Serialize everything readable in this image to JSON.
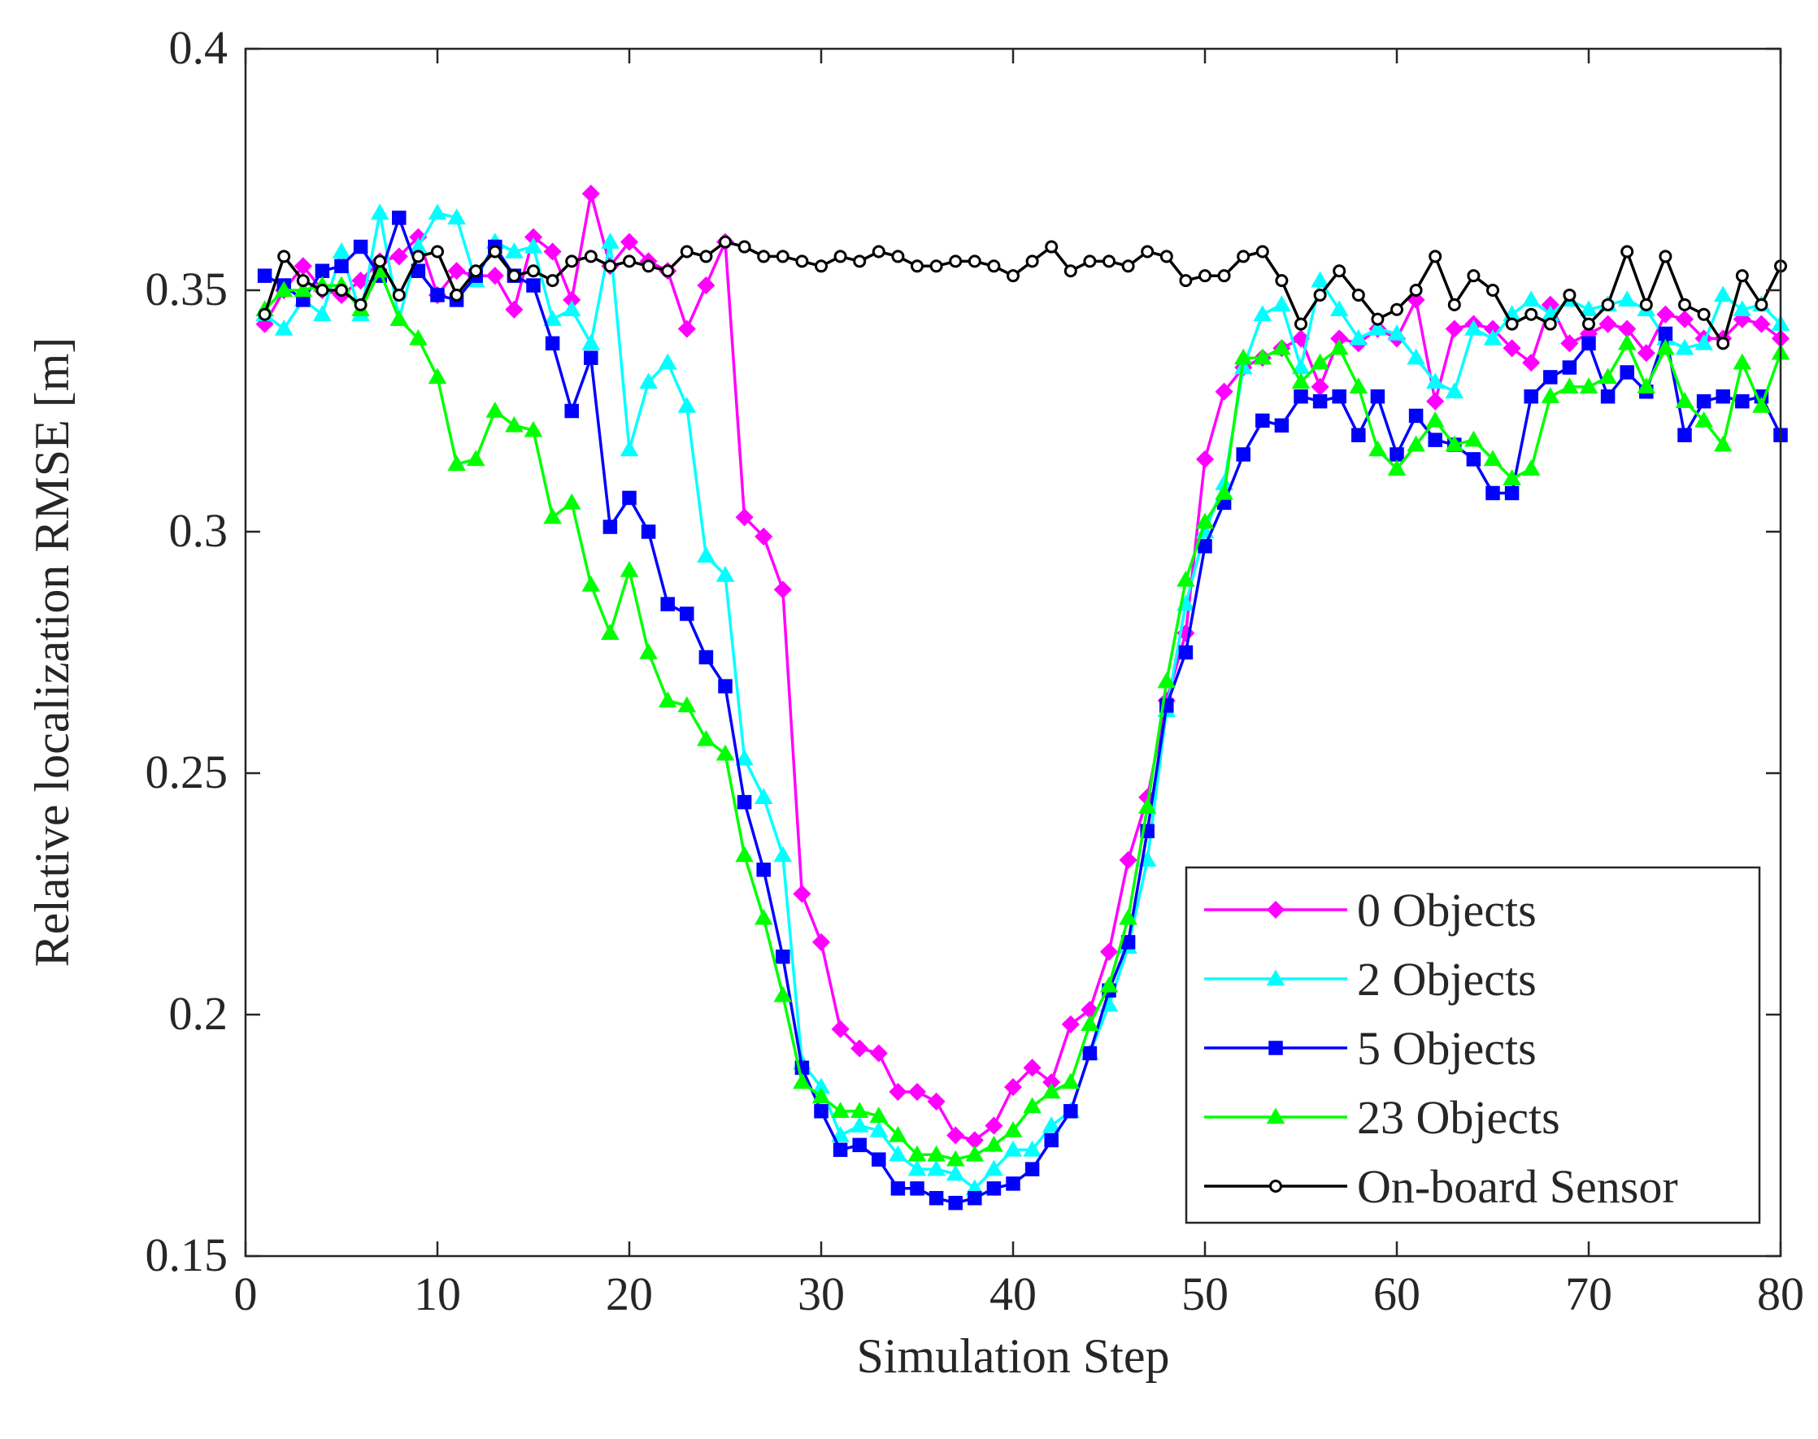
{
  "chart_data": {
    "type": "line",
    "title": "",
    "xlabel": "Simulation Step",
    "ylabel": "Relative localization RMSE [m]",
    "xlim": [
      0,
      80
    ],
    "ylim": [
      0.15,
      0.4
    ],
    "xticks": [
      0,
      10,
      20,
      30,
      40,
      50,
      60,
      70,
      80
    ],
    "xtick_labels": [
      "0",
      "10",
      "20",
      "30",
      "40",
      "50",
      "60",
      "70",
      "80"
    ],
    "yticks": [
      0.15,
      0.2,
      0.25,
      0.3,
      0.35,
      0.4
    ],
    "ytick_labels": [
      "0.15",
      "0.2",
      "0.25",
      "0.3",
      "0.35",
      "0.4"
    ],
    "grid": false,
    "legend_position": "bottom-right",
    "x": [
      1,
      2,
      3,
      4,
      5,
      6,
      7,
      8,
      9,
      10,
      11,
      12,
      13,
      14,
      15,
      16,
      17,
      18,
      19,
      20,
      21,
      22,
      23,
      24,
      25,
      26,
      27,
      28,
      29,
      30,
      31,
      32,
      33,
      34,
      35,
      36,
      37,
      38,
      39,
      40,
      41,
      42,
      43,
      44,
      45,
      46,
      47,
      48,
      49,
      50,
      51,
      52,
      53,
      54,
      55,
      56,
      57,
      58,
      59,
      60,
      61,
      62,
      63,
      64,
      65,
      66,
      67,
      68,
      69,
      70,
      71,
      72,
      73,
      74,
      75,
      76,
      77,
      78,
      79,
      80
    ],
    "series": [
      {
        "name": "0 Objects",
        "color": "#ff00ff",
        "marker": "diamond",
        "values": [
          0.343,
          0.35,
          0.355,
          0.35,
          0.349,
          0.352,
          0.356,
          0.357,
          0.361,
          0.349,
          0.354,
          0.353,
          0.353,
          0.346,
          0.361,
          0.358,
          0.348,
          0.37,
          0.355,
          0.36,
          0.356,
          0.354,
          0.342,
          0.351,
          0.36,
          0.303,
          0.299,
          0.288,
          0.225,
          0.215,
          0.197,
          0.193,
          0.192,
          0.184,
          0.184,
          0.182,
          0.175,
          0.174,
          0.177,
          0.185,
          0.189,
          0.186,
          0.198,
          0.201,
          0.213,
          0.232,
          0.245,
          0.265,
          0.279,
          0.315,
          0.329,
          0.334,
          0.336,
          0.338,
          0.34,
          0.33,
          0.34,
          0.339,
          0.342,
          0.34,
          0.348,
          0.327,
          0.342,
          0.343,
          0.342,
          0.338,
          0.335,
          0.347,
          0.339,
          0.341,
          0.343,
          0.342,
          0.337,
          0.345,
          0.344,
          0.34,
          0.34,
          0.344,
          0.343,
          0.34
        ]
      },
      {
        "name": "2 Objects",
        "color": "#00ffff",
        "marker": "triangle",
        "values": [
          0.345,
          0.342,
          0.348,
          0.345,
          0.358,
          0.345,
          0.366,
          0.344,
          0.359,
          0.366,
          0.365,
          0.352,
          0.36,
          0.358,
          0.359,
          0.344,
          0.346,
          0.339,
          0.36,
          0.317,
          0.331,
          0.335,
          0.326,
          0.295,
          0.291,
          0.253,
          0.245,
          0.233,
          0.19,
          0.185,
          0.175,
          0.177,
          0.176,
          0.171,
          0.168,
          0.168,
          0.167,
          0.164,
          0.168,
          0.172,
          0.172,
          0.177,
          0.18,
          0.192,
          0.202,
          0.214,
          0.232,
          0.263,
          0.285,
          0.3,
          0.31,
          0.334,
          0.345,
          0.347,
          0.334,
          0.352,
          0.346,
          0.34,
          0.342,
          0.341,
          0.336,
          0.331,
          0.329,
          0.342,
          0.34,
          0.345,
          0.348,
          0.345,
          0.348,
          0.346,
          0.347,
          0.348,
          0.346,
          0.34,
          0.338,
          0.339,
          0.349,
          0.346,
          0.347,
          0.343
        ]
      },
      {
        "name": "5 Objects",
        "color": "#0000ff",
        "marker": "square",
        "values": [
          0.353,
          0.351,
          0.348,
          0.354,
          0.355,
          0.359,
          0.353,
          0.365,
          0.354,
          0.349,
          0.348,
          0.353,
          0.359,
          0.353,
          0.351,
          0.339,
          0.325,
          0.336,
          0.301,
          0.307,
          0.3,
          0.285,
          0.283,
          0.274,
          0.268,
          0.244,
          0.23,
          0.212,
          0.189,
          0.18,
          0.172,
          0.173,
          0.17,
          0.164,
          0.164,
          0.162,
          0.161,
          0.162,
          0.164,
          0.165,
          0.168,
          0.174,
          0.18,
          0.192,
          0.205,
          0.215,
          0.238,
          0.264,
          0.275,
          0.297,
          0.306,
          0.316,
          0.323,
          0.322,
          0.328,
          0.327,
          0.328,
          0.32,
          0.328,
          0.316,
          0.324,
          0.319,
          0.318,
          0.315,
          0.308,
          0.308,
          0.328,
          0.332,
          0.334,
          0.339,
          0.328,
          0.333,
          0.329,
          0.341,
          0.32,
          0.327,
          0.328,
          0.327,
          0.328,
          0.32
        ]
      },
      {
        "name": "23 Objects",
        "color": "#00ff00",
        "marker": "triangle",
        "values": [
          0.346,
          0.35,
          0.35,
          0.351,
          0.351,
          0.346,
          0.354,
          0.344,
          0.34,
          0.332,
          0.314,
          0.315,
          0.325,
          0.322,
          0.321,
          0.303,
          0.306,
          0.289,
          0.279,
          0.292,
          0.275,
          0.265,
          0.264,
          0.257,
          0.254,
          0.233,
          0.22,
          0.204,
          0.186,
          0.183,
          0.18,
          0.18,
          0.179,
          0.175,
          0.171,
          0.171,
          0.17,
          0.171,
          0.173,
          0.176,
          0.181,
          0.184,
          0.186,
          0.198,
          0.206,
          0.22,
          0.243,
          0.269,
          0.29,
          0.302,
          0.308,
          0.336,
          0.336,
          0.338,
          0.331,
          0.335,
          0.338,
          0.33,
          0.317,
          0.313,
          0.318,
          0.323,
          0.318,
          0.319,
          0.315,
          0.311,
          0.313,
          0.328,
          0.33,
          0.33,
          0.332,
          0.339,
          0.33,
          0.338,
          0.327,
          0.323,
          0.318,
          0.335,
          0.326,
          0.337
        ]
      },
      {
        "name": "On-board Sensor",
        "color": "#000000",
        "marker": "circle",
        "values": [
          0.345,
          0.357,
          0.352,
          0.35,
          0.35,
          0.347,
          0.356,
          0.349,
          0.357,
          0.358,
          0.349,
          0.354,
          0.358,
          0.353,
          0.354,
          0.352,
          0.356,
          0.357,
          0.355,
          0.356,
          0.355,
          0.354,
          0.358,
          0.357,
          0.36,
          0.359,
          0.357,
          0.357,
          0.356,
          0.355,
          0.357,
          0.356,
          0.358,
          0.357,
          0.355,
          0.355,
          0.356,
          0.356,
          0.355,
          0.353,
          0.356,
          0.359,
          0.354,
          0.356,
          0.356,
          0.355,
          0.358,
          0.357,
          0.352,
          0.353,
          0.353,
          0.357,
          0.358,
          0.352,
          0.343,
          0.349,
          0.354,
          0.349,
          0.344,
          0.346,
          0.35,
          0.357,
          0.347,
          0.353,
          0.35,
          0.343,
          0.345,
          0.343,
          0.349,
          0.343,
          0.347,
          0.358,
          0.347,
          0.357,
          0.347,
          0.345,
          0.339,
          0.353,
          0.347,
          0.355
        ]
      }
    ]
  }
}
